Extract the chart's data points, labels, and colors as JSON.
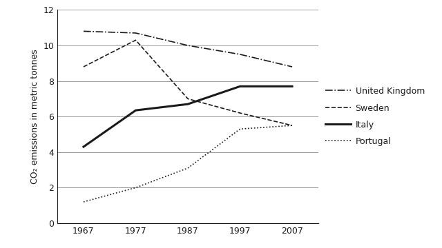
{
  "years": [
    1967,
    1977,
    1987,
    1997,
    2007
  ],
  "united_kingdom": [
    10.8,
    10.7,
    10.0,
    9.5,
    8.8
  ],
  "sweden": [
    8.8,
    10.3,
    7.0,
    6.2,
    5.5
  ],
  "italy": [
    4.3,
    6.35,
    6.7,
    7.7,
    7.7
  ],
  "portugal": [
    1.2,
    2.0,
    3.1,
    5.3,
    5.5
  ],
  "ylabel": "CO₂ emissions in metric tonnes",
  "ylim": [
    0,
    12
  ],
  "yticks": [
    0,
    2,
    4,
    6,
    8,
    10,
    12
  ],
  "xlim_left": 1962,
  "xlim_right": 2012,
  "legend_labels": [
    "United Kingdom",
    "Sweden",
    "Italy",
    "Portugal"
  ],
  "bg_color": "#ffffff",
  "line_color": "#1a1a1a",
  "grid_color": "#999999",
  "lw_thin": 1.2,
  "lw_thick": 2.2,
  "legend_fontsize": 9,
  "tick_fontsize": 9,
  "ylabel_fontsize": 9
}
